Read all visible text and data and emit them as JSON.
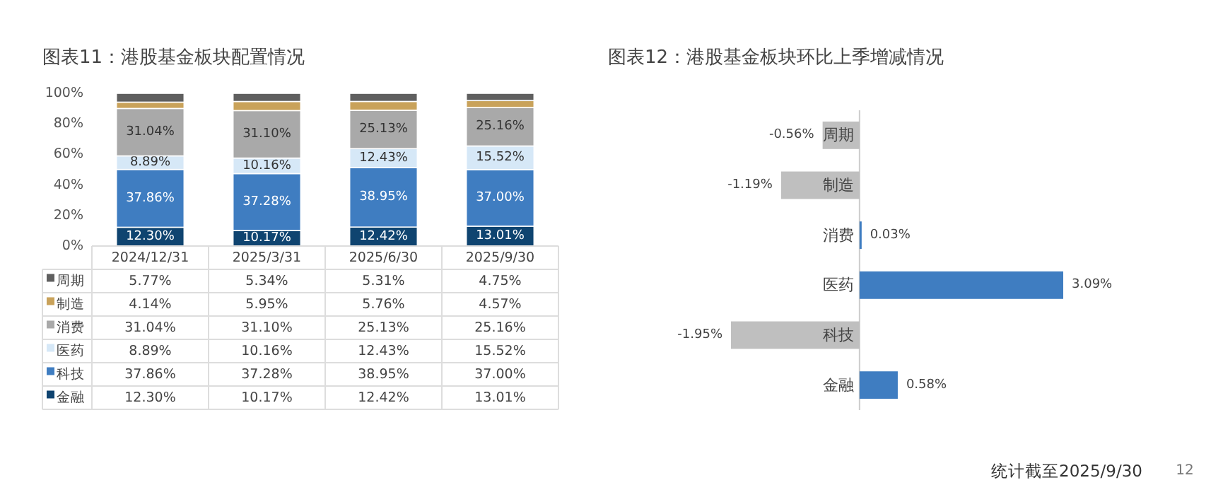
{
  "chart_data": [
    {
      "type": "bar",
      "title": "图表11：港股基金板块配置情况",
      "stacked": true,
      "legend": "bottom",
      "categories": [
        "2024/12/31",
        "2025/3/31",
        "2025/6/30",
        "2025/9/30"
      ],
      "ylim": [
        0,
        100
      ],
      "yticks": [
        {
          "value": 0,
          "label": "0%"
        },
        {
          "value": 20,
          "label": "20%"
        },
        {
          "value": 40,
          "label": "40%"
        },
        {
          "value": 60,
          "label": "60%"
        },
        {
          "value": 80,
          "label": "80%"
        },
        {
          "value": 100,
          "label": "100%"
        }
      ],
      "series": [
        {
          "name": "金融",
          "color": "#0f4470",
          "values": [
            12.3,
            10.17,
            12.42,
            13.01
          ],
          "value_labels": [
            "12.30%",
            "10.17%",
            "12.42%",
            "13.01%"
          ]
        },
        {
          "name": "科技",
          "color": "#3f7dc1",
          "values": [
            37.86,
            37.28,
            38.95,
            37.0
          ],
          "value_labels": [
            "37.86%",
            "37.28%",
            "38.95%",
            "37.00%"
          ]
        },
        {
          "name": "医药",
          "color": "#d6e8f7",
          "values": [
            8.89,
            10.16,
            12.43,
            15.52
          ],
          "value_labels": [
            "8.89%",
            "10.16%",
            "12.43%",
            "15.52%"
          ]
        },
        {
          "name": "消费",
          "color": "#a9a9a9",
          "values": [
            31.04,
            31.1,
            25.13,
            25.16
          ],
          "value_labels": [
            "31.04%",
            "31.10%",
            "25.13%",
            "25.16%"
          ]
        },
        {
          "name": "制造",
          "color": "#c9a25a",
          "values": [
            4.14,
            5.95,
            5.76,
            4.57
          ],
          "value_labels": [
            "4.14%",
            "5.95%",
            "5.76%",
            "4.57%"
          ]
        },
        {
          "name": "周期",
          "color": "#5f5f5f",
          "values": [
            5.77,
            5.34,
            5.31,
            4.75
          ],
          "value_labels": [
            "5.77%",
            "5.34%",
            "5.31%",
            "4.75%"
          ]
        }
      ]
    },
    {
      "type": "bar",
      "orientation": "horizontal",
      "title": "图表12：港股基金板块环比上季增减情况",
      "categories": [
        "周期",
        "制造",
        "消费",
        "医药",
        "科技",
        "金融"
      ],
      "values": [
        -0.56,
        -1.19,
        0.03,
        3.09,
        -1.95,
        0.58
      ],
      "value_labels": [
        "-0.56%",
        "-1.19%",
        "0.03%",
        "3.09%",
        "-1.95%",
        "0.58%"
      ],
      "colors": [
        "#bfbfbf",
        "#bfbfbf",
        "#3f7dc1",
        "#3f7dc1",
        "#bfbfbf",
        "#3f7dc1"
      ],
      "annotations": [
        "统计截至2025/9/30",
        "12"
      ]
    }
  ]
}
